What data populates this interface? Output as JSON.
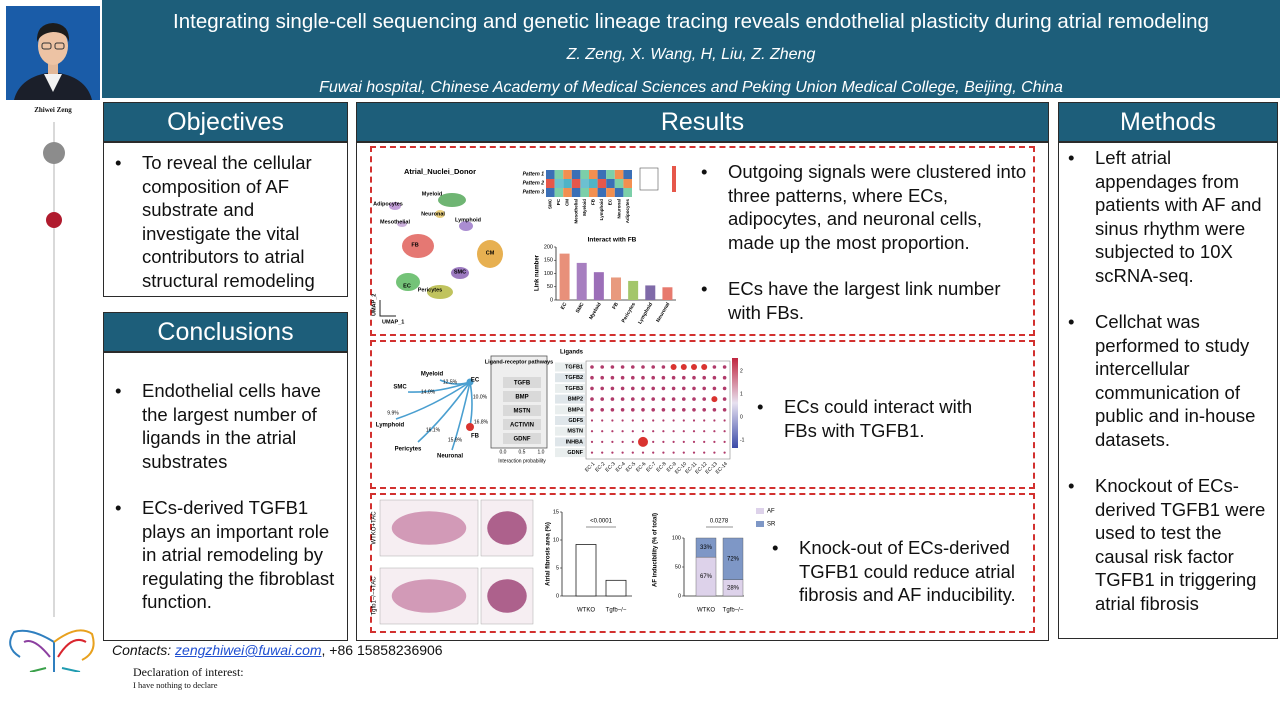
{
  "header": {
    "title": "Integrating single-cell sequencing and genetic lineage tracing reveals endothelial plasticity during atrial remodeling",
    "authors": "Z. Zeng, X. Wang, H, Liu, Z. Zheng",
    "affiliation": "Fuwai hospital, Chinese Academy of Medical Sciences and Peking Union Medical College, Beijing, China"
  },
  "presenter": "Zhiwei Zeng",
  "objectives": {
    "heading": "Objectives",
    "items": [
      "To reveal the cellular composition of AF substrate and investigate the vital contributors to atrial structural remodeling"
    ]
  },
  "conclusions": {
    "heading": "Conclusions",
    "items": [
      "Endothelial cells have the largest number of ligands in the atrial substrates",
      "ECs-derived TGFB1 plays an important role in atrial remodeling by regulating the fibroblast function."
    ]
  },
  "methods": {
    "heading": "Methods",
    "items": [
      "Left atrial appendages from patients with AF and sinus rhythm were subjected to 10X scRNA-seq.",
      "Cellchat was performed to study intercellular communication of public and in-house datasets.",
      "Knockout of ECs-derived TGFB1 were used to test the causal risk factor TGFB1 in triggering atrial fibrosis"
    ]
  },
  "results": {
    "heading": "Results",
    "panels": [
      {
        "bullets": [
          "Outgoing signals were clustered into three patterns, where ECs, adipocytes, and neuronal cells, made up the most proportion.",
          "ECs have the largest link number with FBs."
        ],
        "umap": {
          "title": "Atrial_Nuclei_Donor",
          "clusters": [
            "Myeloid",
            "Adipocytes",
            "Neuronal",
            "Mesothelial",
            "Lymphoid",
            "FB",
            "CM",
            "SMC",
            "EC",
            "Pericytes"
          ],
          "x_label": "UMAP_1",
          "y_label": "UMAP_2"
        },
        "heatmap": {
          "rows": [
            "Pattern 1",
            "Pattern 2",
            "Pattern 3"
          ],
          "columns": [
            "SMC",
            "PC",
            "CM",
            "Mesothelial",
            "Myeloid",
            "FB",
            "Lymphoid",
            "EC",
            "Neuronal",
            "Adipocytes"
          ]
        },
        "chart_data": {
          "type": "bar",
          "title": "Interact with FB",
          "y_label": "Link number",
          "categories": [
            "EC",
            "SMC",
            "Myeloid",
            "FB",
            "Pericytes",
            "Lymphoid",
            "Neuronal"
          ],
          "values": [
            175,
            140,
            105,
            85,
            72,
            55,
            48
          ],
          "colors": [
            "#e8907a",
            "#a77fc0",
            "#9c6fb8",
            "#e89a7e",
            "#a3c66a",
            "#7f6aa8",
            "#e77a6e"
          ],
          "ylim": [
            0,
            200
          ],
          "yticks": [
            0,
            50,
            100,
            150,
            200
          ]
        }
      },
      {
        "bullets": [
          "ECs could interact with FBs with TGFB1."
        ],
        "network": {
          "nodes": [
            "Myeloid",
            "SMC",
            "Lymphoid",
            "Pericytes",
            "Neuronal",
            "EC",
            "FB"
          ],
          "edge_labels": [
            "12.5%",
            "14.0%",
            "10.0%",
            "9.9%",
            "16.8%",
            "16.1%",
            "15.9%"
          ]
        },
        "pathways": {
          "title": "Ligand-receptor pathways",
          "items": [
            "TGFB",
            "BMP",
            "MSTN",
            "ACTIVIN",
            "GDNF"
          ],
          "x_ticks": [
            "0.0",
            "0.5",
            "1.0"
          ],
          "x_label": "Interaction probability"
        },
        "dotplot": {
          "title": "Ligands",
          "rows": [
            "TGFB1",
            "TGFB2",
            "TGFB3",
            "BMP2",
            "BMP4",
            "GDF5",
            "MSTN",
            "INHBA",
            "GDNF"
          ],
          "columns": [
            "EC-1",
            "EC-2",
            "EC-3",
            "EC-4",
            "EC-5",
            "EC-6",
            "EC-7",
            "EC-8",
            "EC-9",
            "EC-10",
            "EC-11",
            "EC-12",
            "EC-13",
            "EC-14"
          ],
          "scale_ticks": [
            2,
            1,
            0,
            -1
          ]
        }
      },
      {
        "bullets": [
          "Knock-out of ECs-derived TGFB1 could reduce atrial fibrosis and AF inducibility."
        ],
        "image_labels": [
          "WTKO+TAC",
          "Tgfb1−/−+TAC"
        ],
        "charts": [
          {
            "type": "bar",
            "y_label": "Atrial fibrosis area (%)",
            "categories": [
              "WTKO",
              "Tgfb−/−"
            ],
            "values": [
              9.2,
              2.8
            ],
            "color": "#ffffff",
            "ylim": [
              0,
              15
            ],
            "yticks": [
              0,
              5,
              10,
              15
            ],
            "annotation": "<0.0001"
          },
          {
            "type": "stacked_bar",
            "y_label": "AF inducibility (% of total)",
            "categories": [
              "WTKO",
              "Tgfb−/−"
            ],
            "series": [
              {
                "name": "AF",
                "color": "#ddd2ea",
                "values": [
                  67,
                  28
                ],
                "value_labels": [
                  "67%",
                  "28%"
                ]
              },
              {
                "name": "SR",
                "color": "#7e97c6",
                "values": [
                  33,
                  72
                ],
                "value_labels": [
                  "33%",
                  "72%"
                ]
              }
            ],
            "ylim": [
              0,
              100
            ],
            "yticks": [
              0,
              50,
              100
            ],
            "annotation": "0.0278"
          }
        ]
      }
    ]
  },
  "footer": {
    "contacts_label": "Contacts:",
    "email": "zengzhiwei@fuwai.com",
    "phone": ", +86 15858236906",
    "declaration_title": "Declaration of interest:",
    "declaration_text": "I have nothing to declare"
  }
}
